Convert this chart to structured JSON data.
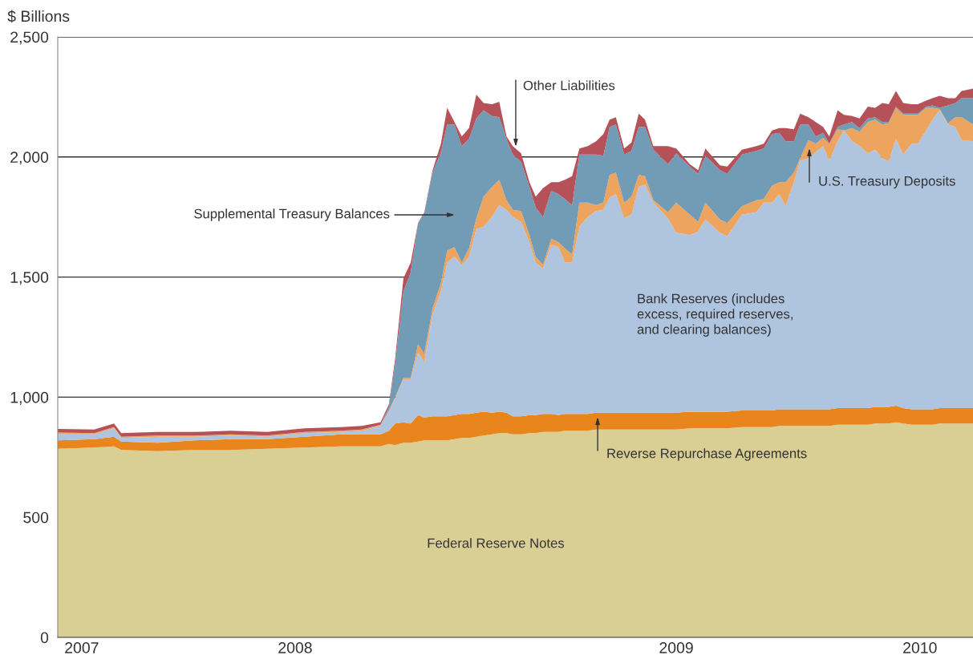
{
  "chart_data": {
    "type": "area",
    "stacked": true,
    "ylabel": "$ Billions",
    "x": [
      "2007-11-16",
      "2007-12-21",
      "2008-01-09",
      "2008-01-16",
      "2008-02-20",
      "2008-03-26",
      "2008-04-30",
      "2008-06-04",
      "2008-07-10",
      "2008-08-14",
      "2008-09-03",
      "2008-09-21",
      "2008-09-29",
      "2008-10-05",
      "2008-10-13",
      "2008-10-20",
      "2008-10-27",
      "2008-11-02",
      "2008-11-10",
      "2008-11-18",
      "2008-11-24",
      "2008-12-01",
      "2008-12-08",
      "2008-12-15",
      "2008-12-22",
      "2008-12-29",
      "2009-01-06",
      "2009-01-13",
      "2009-01-20",
      "2009-01-26",
      "2009-02-03",
      "2009-02-11",
      "2009-02-17",
      "2009-02-24",
      "2009-03-04",
      "2009-03-11",
      "2009-03-17",
      "2009-03-24",
      "2009-03-31",
      "2009-04-08",
      "2009-04-16",
      "2009-04-23",
      "2009-04-29",
      "2009-05-05",
      "2009-05-13",
      "2009-05-20",
      "2009-05-27",
      "2009-06-02",
      "2009-06-10",
      "2009-06-24",
      "2009-07-02",
      "2009-07-15",
      "2009-07-23",
      "2009-07-30",
      "2009-08-13",
      "2009-08-20",
      "2009-09-03",
      "2009-09-17",
      "2009-09-24",
      "2009-10-02",
      "2009-10-09",
      "2009-10-15",
      "2009-10-23",
      "2009-10-29",
      "2009-11-06",
      "2009-11-13",
      "2009-11-20",
      "2009-11-26",
      "2009-12-04",
      "2009-12-10",
      "2009-12-18",
      "2009-12-25",
      "2010-01-02",
      "2010-01-09",
      "2010-01-16",
      "2010-01-22",
      "2010-01-29",
      "2010-02-05",
      "2010-02-13",
      "2010-02-19",
      "2010-02-27",
      "2010-03-05",
      "2010-03-12",
      "2010-03-20",
      "2010-03-27",
      "2010-04-02",
      "2010-04-13"
    ],
    "series": [
      {
        "name": "Federal Reserve Notes",
        "color": "#d9cf94",
        "values": [
          785,
          790,
          795,
          780,
          775,
          780,
          780,
          785,
          790,
          795,
          795,
          795,
          805,
          800,
          810,
          810,
          815,
          820,
          820,
          820,
          820,
          825,
          830,
          830,
          835,
          840,
          845,
          850,
          850,
          845,
          845,
          850,
          850,
          855,
          855,
          855,
          860,
          860,
          860,
          860,
          865,
          865,
          865,
          865,
          865,
          865,
          865,
          865,
          865,
          865,
          865,
          870,
          870,
          870,
          870,
          870,
          875,
          875,
          875,
          875,
          880,
          880,
          880,
          880,
          880,
          880,
          880,
          880,
          885,
          885,
          885,
          885,
          885,
          890,
          890,
          890,
          895,
          890,
          885,
          885,
          885,
          885,
          890,
          890,
          890,
          890,
          890
        ]
      },
      {
        "name": "Reverse Repurchase Agreements",
        "color": "#e8861d",
        "values": [
          35,
          35,
          40,
          35,
          35,
          40,
          45,
          40,
          45,
          50,
          50,
          50,
          55,
          90,
          85,
          80,
          110,
          95,
          100,
          100,
          100,
          100,
          100,
          100,
          100,
          100,
          90,
          90,
          85,
          75,
          75,
          75,
          75,
          75,
          75,
          70,
          70,
          70,
          70,
          70,
          70,
          70,
          70,
          70,
          70,
          70,
          70,
          70,
          70,
          70,
          70,
          70,
          70,
          70,
          70,
          70,
          70,
          70,
          70,
          70,
          70,
          70,
          70,
          70,
          70,
          70,
          70,
          70,
          70,
          70,
          70,
          70,
          70,
          70,
          70,
          70,
          70,
          65,
          65,
          65,
          65,
          65,
          65,
          65,
          65,
          65,
          65
        ]
      },
      {
        "name": "Bank Reserves (includes\nexcess, required reserves,\nand clearing balances)",
        "color": "#afc4df",
        "values": [
          25,
          20,
          35,
          15,
          25,
          15,
          15,
          10,
          15,
          10,
          15,
          35,
          80,
          105,
          180,
          185,
          260,
          230,
          425,
          520,
          640,
          660,
          620,
          655,
          765,
          770,
          815,
          860,
          845,
          830,
          810,
          720,
          635,
          605,
          705,
          700,
          630,
          630,
          780,
          820,
          840,
          845,
          895,
          910,
          810,
          825,
          940,
          950,
          875,
          810,
          750,
          735,
          750,
          800,
          745,
          730,
          815,
          825,
          865,
          865,
          895,
          845,
          945,
          1035,
          1045,
          1070,
          1095,
          1035,
          1110,
          1155,
          1110,
          1090,
          1060,
          1070,
          1035,
          1020,
          1110,
          1055,
          1105,
          1105,
          1160,
          1205,
          1240,
          1180,
          1170,
          1115,
          1110
        ]
      },
      {
        "name": "U.S. Treasury Deposits",
        "color": "#eda45e",
        "values": [
          8,
          5,
          5,
          5,
          5,
          5,
          5,
          5,
          5,
          5,
          5,
          5,
          5,
          5,
          5,
          5,
          35,
          35,
          25,
          35,
          50,
          40,
          10,
          35,
          45,
          125,
          125,
          105,
          40,
          30,
          45,
          30,
          25,
          15,
          25,
          20,
          60,
          35,
          100,
          60,
          25,
          30,
          95,
          90,
          65,
          75,
          50,
          35,
          10,
          25,
          125,
          85,
          40,
          70,
          55,
          55,
          35,
          50,
          15,
          70,
          50,
          100,
          40,
          10,
          75,
          35,
          35,
          70,
          50,
          0,
          55,
          60,
          130,
          125,
          140,
          160,
          130,
          165,
          120,
          120,
          95,
          50,
          5,
          5,
          40,
          95,
          70
        ]
      },
      {
        "name": "Supplemental Treasury Balances",
        "color": "#729bb5",
        "values": [
          0,
          0,
          0,
          0,
          0,
          0,
          0,
          0,
          0,
          0,
          0,
          0,
          15,
          140,
          360,
          440,
          500,
          585,
          565,
          545,
          525,
          510,
          485,
          455,
          415,
          360,
          295,
          260,
          255,
          230,
          205,
          200,
          205,
          200,
          200,
          200,
          205,
          205,
          200,
          200,
          210,
          195,
          200,
          200,
          200,
          190,
          200,
          205,
          210,
          200,
          205,
          200,
          200,
          195,
          205,
          205,
          215,
          205,
          210,
          215,
          205,
          170,
          130,
          140,
          65,
          30,
          20,
          0,
          10,
          25,
          25,
          15,
          15,
          10,
          10,
          5,
          5,
          5,
          5,
          5,
          5,
          10,
          5,
          75,
          60,
          80,
          110
        ]
      },
      {
        "name": "Other Liabilities",
        "color": "#b55159",
        "values": [
          15,
          15,
          15,
          15,
          15,
          15,
          15,
          15,
          15,
          15,
          15,
          10,
          10,
          20,
          55,
          40,
          5,
          5,
          10,
          35,
          70,
          10,
          40,
          45,
          100,
          30,
          50,
          65,
          10,
          35,
          35,
          20,
          45,
          120,
          35,
          50,
          80,
          120,
          25,
          35,
          55,
          90,
          30,
          30,
          25,
          35,
          55,
          30,
          15,
          75,
          20,
          10,
          15,
          30,
          20,
          30,
          20,
          20,
          20,
          15,
          20,
          55,
          50,
          45,
          30,
          60,
          25,
          30,
          70,
          40,
          25,
          40,
          50,
          40,
          80,
          75,
          65,
          45,
          40,
          40,
          25,
          30,
          50,
          30,
          20,
          30,
          40
        ]
      }
    ],
    "xlim": [
      "2007-11-16",
      "2010-04-13"
    ],
    "xticks": [
      {
        "value": "2007-12-09",
        "label": "2007"
      },
      {
        "value": "2008-01-01",
        "label": null
      },
      {
        "value": "2008-07-01",
        "label": "2008"
      },
      {
        "value": "2009-01-01",
        "label": null
      },
      {
        "value": "2009-07-02",
        "label": "2009"
      },
      {
        "value": "2010-01-01",
        "label": null
      },
      {
        "value": "2010-02-21",
        "label": "2010"
      }
    ],
    "ylim": [
      0,
      2500
    ],
    "yticks": [
      0,
      500,
      {
        "value": 1000,
        "label": "1,000"
      },
      {
        "value": 1500,
        "label": "1,500"
      },
      {
        "value": 2000,
        "label": "2,000"
      },
      {
        "value": 2500,
        "label": "2,500"
      }
    ],
    "grid": "y"
  }
}
